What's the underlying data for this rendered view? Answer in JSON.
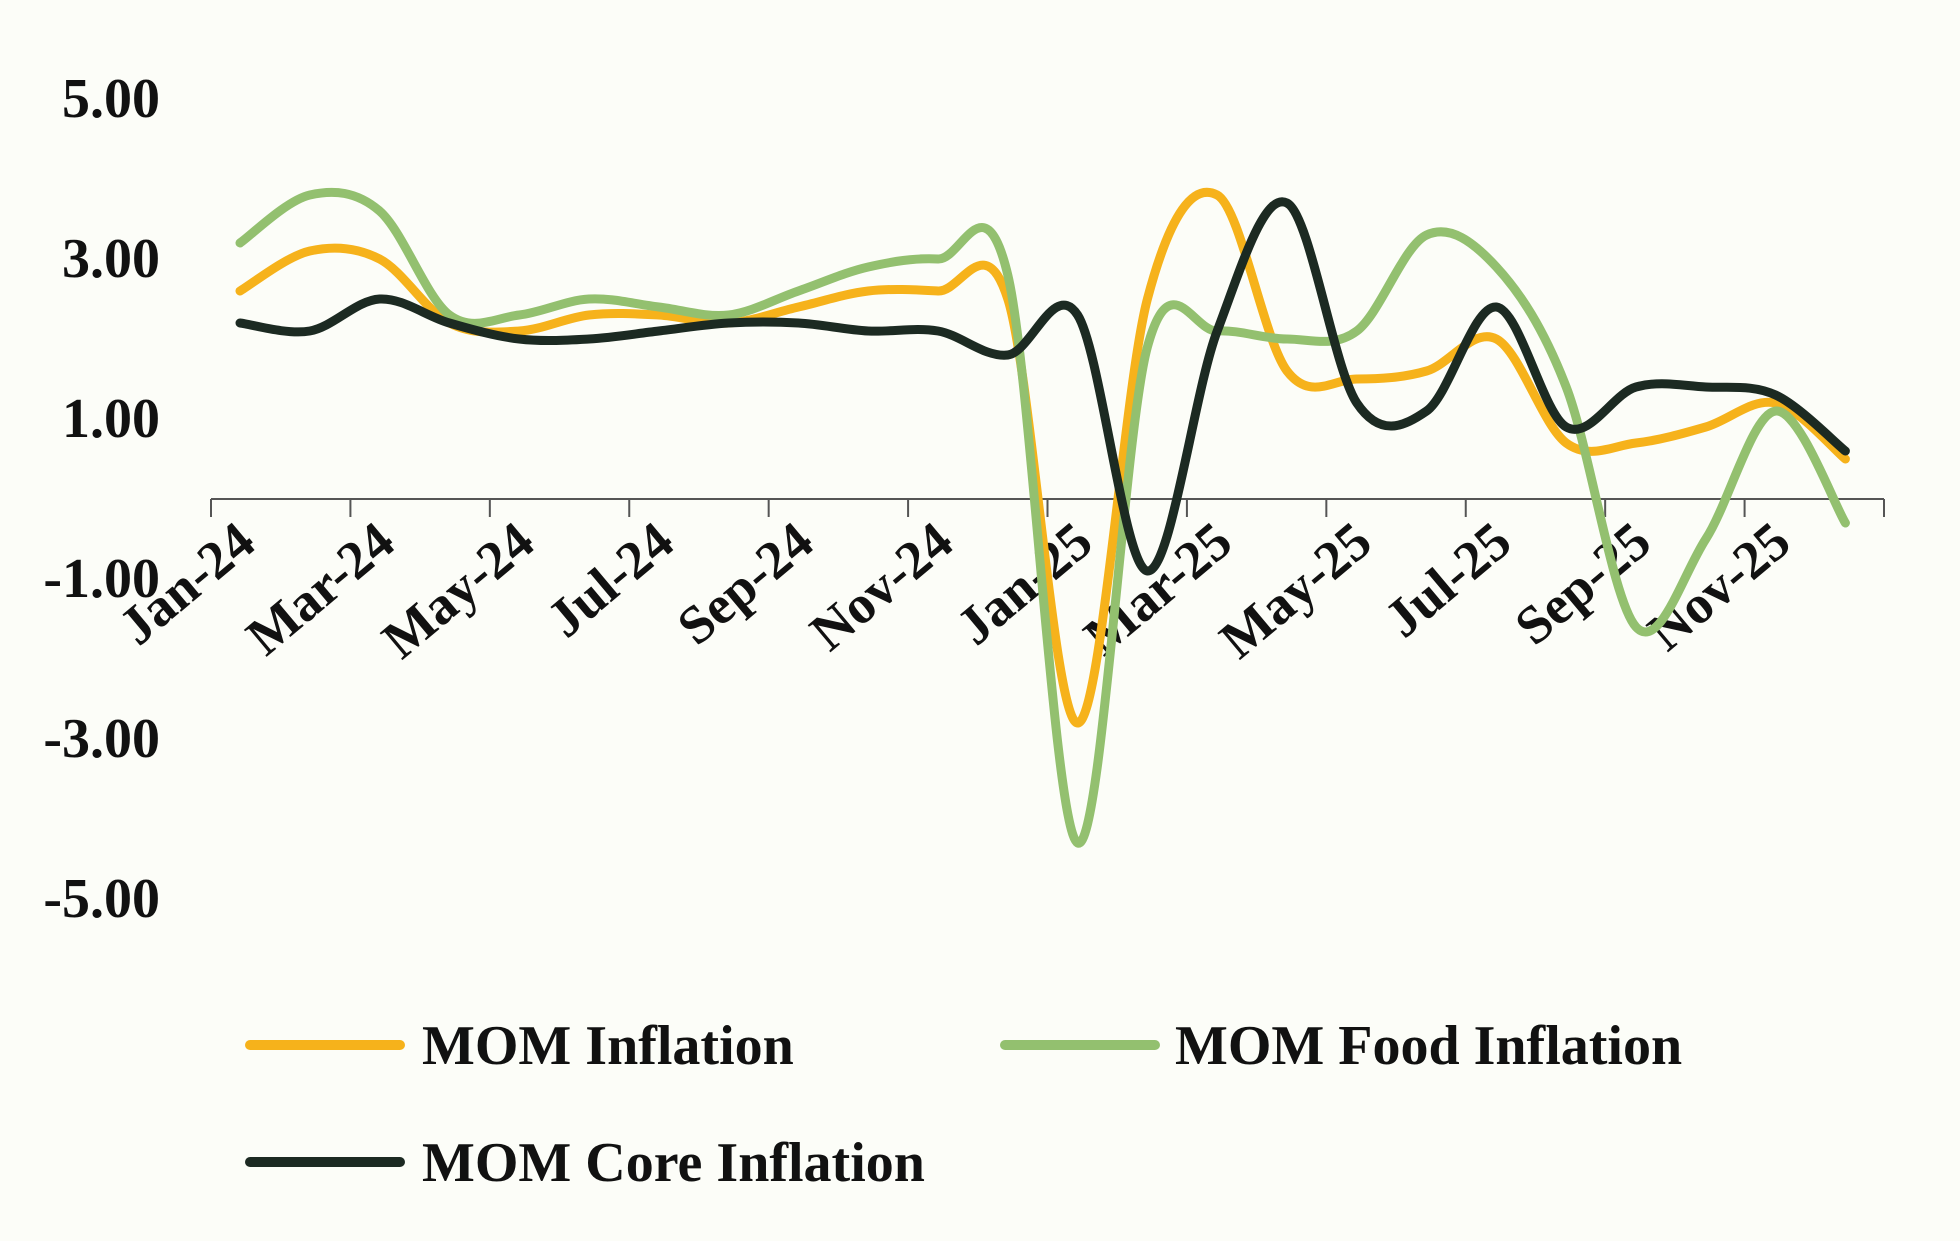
{
  "chart_data": {
    "type": "line",
    "title": "",
    "xlabel": "",
    "ylabel": "",
    "ylim": [
      -5,
      5
    ],
    "yticks": [
      5,
      3,
      1,
      -1,
      -3,
      -5
    ],
    "ytick_labels": [
      "5.00",
      "3.00",
      "1.00",
      "-1.00",
      "-3.00",
      "-5.00"
    ],
    "categories": [
      "Jan-24",
      "Feb-24",
      "Mar-24",
      "Apr-24",
      "May-24",
      "Jun-24",
      "Jul-24",
      "Aug-24",
      "Sep-24",
      "Oct-24",
      "Nov-24",
      "Dec-24",
      "Jan-25",
      "Feb-25",
      "Mar-25",
      "Apr-25",
      "May-25",
      "Jun-25",
      "Jul-25",
      "Aug-25",
      "Sep-25",
      "Oct-25",
      "Nov-25",
      "Dec-25"
    ],
    "xtick_labels": [
      "Jan-24",
      "Mar-24",
      "May-24",
      "Jul-24",
      "Sep-24",
      "Nov-24",
      "Jan-25",
      "Mar-25",
      "May-25",
      "Jul-25",
      "Sep-25",
      "Nov-25"
    ],
    "grid": false,
    "legend_position": "bottom",
    "series": [
      {
        "name": "MOM Inflation",
        "color": "#f6b21b",
        "values": [
          2.6,
          3.1,
          3.0,
          2.2,
          2.1,
          2.3,
          2.3,
          2.2,
          2.4,
          2.6,
          2.6,
          2.5,
          -2.8,
          2.5,
          3.8,
          1.6,
          1.5,
          1.6,
          2.0,
          0.7,
          0.7,
          0.9,
          1.2,
          0.5
        ]
      },
      {
        "name": "MOM Food Inflation",
        "color": "#93c06f",
        "values": [
          3.2,
          3.8,
          3.6,
          2.3,
          2.3,
          2.5,
          2.4,
          2.3,
          2.6,
          2.9,
          3.0,
          2.8,
          -4.3,
          1.9,
          2.1,
          2.0,
          2.1,
          3.3,
          2.9,
          1.4,
          -1.6,
          -0.5,
          1.1,
          -0.3
        ]
      },
      {
        "name": "MOM Core Inflation",
        "color": "#1c2a22",
        "values": [
          2.2,
          2.1,
          2.5,
          2.2,
          2.0,
          2.0,
          2.1,
          2.2,
          2.2,
          2.1,
          2.1,
          1.8,
          2.3,
          -0.9,
          2.1,
          3.7,
          1.2,
          1.1,
          2.4,
          0.9,
          1.4,
          1.4,
          1.3,
          0.6
        ]
      }
    ]
  }
}
